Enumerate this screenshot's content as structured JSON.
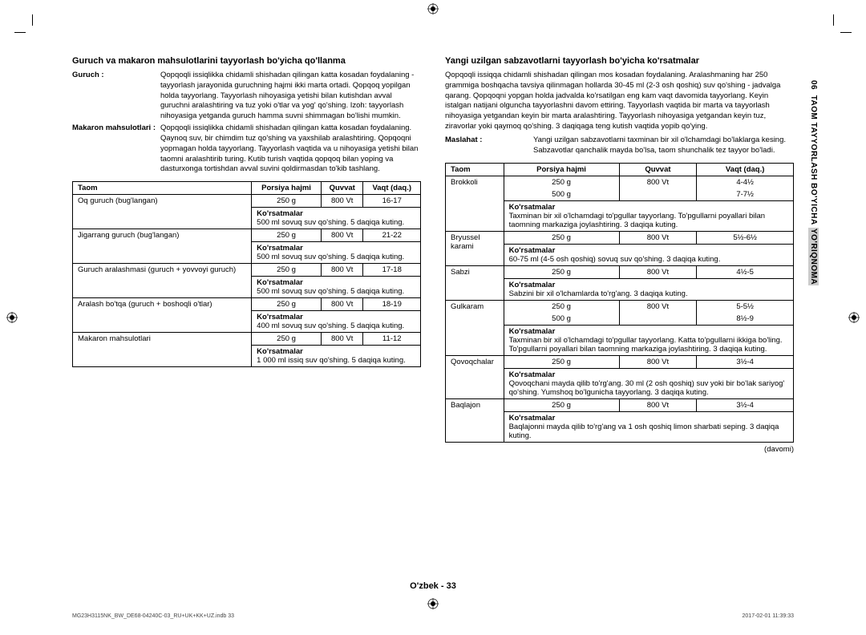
{
  "vertical_tab": {
    "chapter": "06",
    "title1": "TAOM TAYYORLASH BO'YICHA",
    "title2": "YO'RIQNOMA"
  },
  "left": {
    "heading": "Guruch va makaron mahsulotlarini tayyorlash bo'yicha qo'llanma",
    "defs": [
      {
        "label": "Guruch :",
        "value": "Qopqoqli issiqlikka chidamli shishadan qilingan katta kosadan foydalaning - tayyorlash jarayonida guruchning hajmi ikki marta ortadi. Qopqoq yopilgan holda tayyorlang. Tayyorlash nihoyasiga yetishi bilan kutishdan avval guruchni aralashtiring va tuz yoki o'tlar va yog' qo'shing. Izoh: tayyorlash nihoyasiga yetganda guruch hamma suvni shimmagan bo'lishi mumkin."
      },
      {
        "label": "Makaron mahsulotlari :",
        "value": "Qopqoqli issiqlikka chidamli shishadan qilingan katta kosadan foydalaning. Qaynoq suv, bir chimdim tuz qo'shing va yaxshilab aralashtiring. Qopqoqni yopmagan holda tayyorlang. Tayyorlash vaqtida va u nihoyasiga yetishi bilan taomni aralashtirib turing. Kutib turish vaqtida qopqoq bilan yoping va dasturxonga tortishdan avval suvini qoldirmasdan to'kib tashlang."
      }
    ],
    "table": {
      "headers": [
        "Taom",
        "Porsiya hajmi",
        "Quvvat",
        "Vaqt (daq.)"
      ],
      "rows": [
        {
          "name": "Oq guruch (bug'langan)",
          "portion": "250 g",
          "power": "800 Vt",
          "time": "16-17",
          "instr_label": "Ko'rsatmalar",
          "instr": "500 ml sovuq suv qo'shing. 5 daqiqa kuting."
        },
        {
          "name": "Jigarrang guruch (bug'langan)",
          "portion": "250 g",
          "power": "800 Vt",
          "time": "21-22",
          "instr_label": "Ko'rsatmalar",
          "instr": "500 ml sovuq suv qo'shing. 5 daqiqa kuting."
        },
        {
          "name": "Guruch aralashmasi (guruch + yovvoyi guruch)",
          "portion": "250 g",
          "power": "800 Vt",
          "time": "17-18",
          "instr_label": "Ko'rsatmalar",
          "instr": "500 ml sovuq suv qo'shing. 5 daqiqa kuting."
        },
        {
          "name": "Aralash bo'tqa (guruch + boshoqli o'tlar)",
          "portion": "250 g",
          "power": "800 Vt",
          "time": "18-19",
          "instr_label": "Ko'rsatmalar",
          "instr": "400 ml sovuq suv qo'shing. 5 daqiqa kuting."
        },
        {
          "name": "Makaron mahsulotlari",
          "portion": "250 g",
          "power": "800 Vt",
          "time": "11-12",
          "instr_label": "Ko'rsatmalar",
          "instr": "1 000 ml issiq suv qo'shing. 5 daqiqa kuting."
        }
      ]
    }
  },
  "right": {
    "heading": "Yangi uzilgan sabzavotlarni tayyorlash bo'yicha ko'rsatmalar",
    "intro": "Qopqoqli issiqqa chidamli shishadan qilingan mos kosadan foydalaning. Aralashmaning har 250 grammiga boshqacha tavsiya qilinmagan hollarda 30-45 ml (2-3 osh qoshiq) suv qo'shing - jadvalga qarang. Qopqoqni yopgan holda jadvalda ko'rsatilgan eng kam vaqt davomida tayyorlang. Keyin istalgan natijani olguncha tayyorlashni davom ettiring. Tayyorlash vaqtida bir marta va tayyorlash nihoyasiga yetgandan keyin bir marta aralashtiring. Tayyorlash nihoyasiga yetgandan keyin tuz, ziravorlar yoki qaymoq qo'shing. 3 daqiqaga teng kutish vaqtida yopib qo'ying.",
    "defs": [
      {
        "label": "Maslahat :",
        "value": "Yangi uzilgan sabzavotlarni taxminan bir xil o'lchamdagi bo'laklarga kesing. Sabzavotlar qanchalik mayda bo'lsa, taom shunchalik tez tayyor bo'ladi."
      }
    ],
    "table": {
      "headers": [
        "Taom",
        "Porsiya hajmi",
        "Quvvat",
        "Vaqt (daq.)"
      ],
      "rows": [
        {
          "name": "Brokkoli",
          "rows2": [
            {
              "portion": "250 g",
              "power": "800 Vt",
              "time": "4-4½"
            },
            {
              "portion": "500 g",
              "power": "",
              "time": "7-7½"
            }
          ],
          "instr_label": "Ko'rsatmalar",
          "instr": "Taxminan bir xil o'lchamdagi to'pgullar tayyorlang. To'pgullarni poyallari bilan taomning markaziga joylashtiring. 3 daqiqa kuting."
        },
        {
          "name": "Bryussel karami",
          "rows2": [
            {
              "portion": "250 g",
              "power": "800 Vt",
              "time": "5½-6½"
            }
          ],
          "instr_label": "Ko'rsatmalar",
          "instr": "60-75 ml (4-5 osh qoshiq) sovuq suv qo'shing. 3 daqiqa kuting."
        },
        {
          "name": "Sabzi",
          "rows2": [
            {
              "portion": "250 g",
              "power": "800 Vt",
              "time": "4½-5"
            }
          ],
          "instr_label": "Ko'rsatmalar",
          "instr": "Sabzini bir xil o'lchamlarda to'rg'ang. 3 daqiqa kuting."
        },
        {
          "name": "Gulkaram",
          "rows2": [
            {
              "portion": "250 g",
              "power": "800 Vt",
              "time": "5-5½"
            },
            {
              "portion": "500 g",
              "power": "",
              "time": "8½-9"
            }
          ],
          "instr_label": "Ko'rsatmalar",
          "instr": "Taxminan bir xil o'lchamdagi to'pgullar tayyorlang. Katta to'pgullarni ikkiga bo'ling. To'pgullarni poyallari bilan taomning markaziga joylashtiring. 3 daqiqa kuting."
        },
        {
          "name": "Qovoqchalar",
          "rows2": [
            {
              "portion": "250 g",
              "power": "800 Vt",
              "time": "3½-4"
            }
          ],
          "instr_label": "Ko'rsatmalar",
          "instr": "Qovoqchani mayda qilib to'rg'ang. 30 ml (2 osh qoshiq) suv yoki bir bo'lak sariyog' qo'shing. Yumshoq bo'lgunicha tayyorlang. 3 daqiqa kuting."
        },
        {
          "name": "Baqlajon",
          "rows2": [
            {
              "portion": "250 g",
              "power": "800 Vt",
              "time": "3½-4"
            }
          ],
          "instr_label": "Ko'rsatmalar",
          "instr": "Baqlajonni mayda qilib to'rg'ang va 1 osh qoshiq limon sharbati seping. 3 daqiqa kuting."
        }
      ],
      "continued": "(davomi)"
    }
  },
  "footer_page": "O'zbek - 33",
  "print_left": "MG23H3115NK_BW_DE68-04240C-03_RU+UK+KK+UZ.indb   33",
  "print_right": "2017-02-01    11:39:33"
}
